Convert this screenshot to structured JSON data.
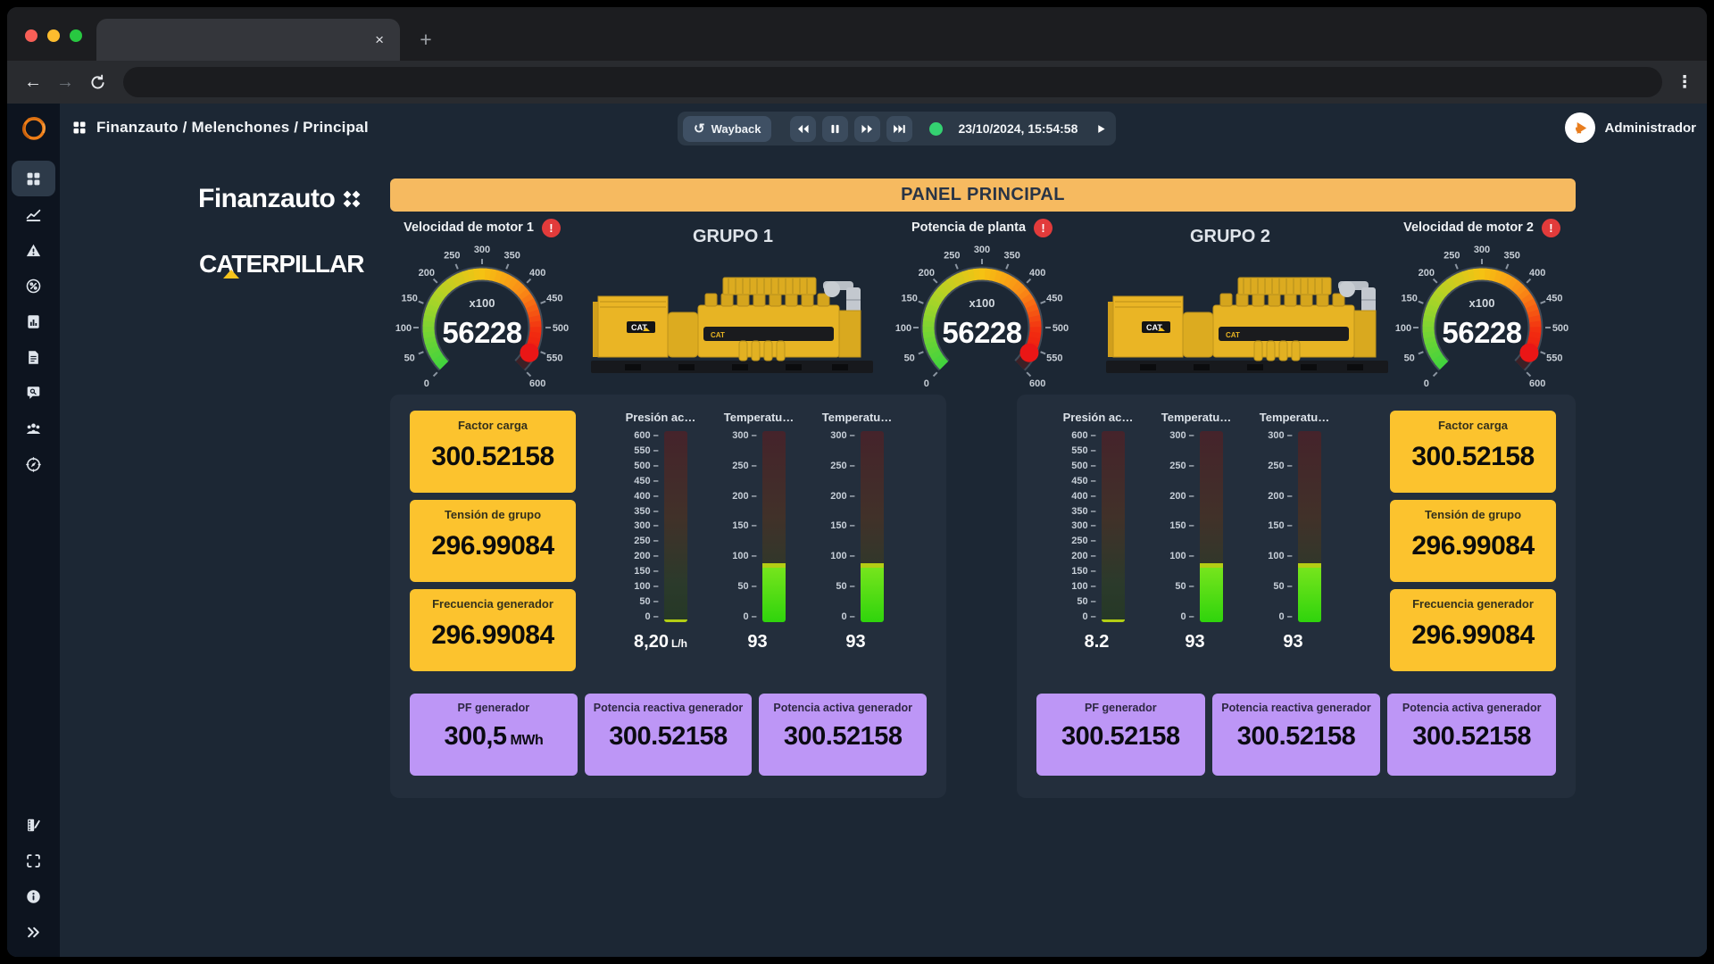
{
  "browser": {
    "tab_title": "",
    "new_tab": "+",
    "close": "×"
  },
  "icons_text": {
    "alarm": "!",
    "back": "←",
    "forward": "→",
    "menu": "⋮",
    "history": "↺"
  },
  "topbar": {
    "breadcrumb": "Finanzauto / Melenchones / Principal",
    "wayback": "Wayback",
    "timestamp": "23/10/2024, 15:54:58",
    "user": "Administrador"
  },
  "brand": {
    "finanzauto": "Finanzauto",
    "caterpillar": "CATERPILLAR"
  },
  "panel_title": "PANEL PRINCIPAL",
  "colors": {
    "header_orange": "#f6ba60",
    "card_yellow": "#fcc32e",
    "card_purple": "#bd96f6",
    "alarm_red": "#e23b3b",
    "record_green": "#34d171"
  },
  "sidebar_icons": [
    "dashboard",
    "trend-chart",
    "alarm-warning",
    "percent",
    "report-chart",
    "document",
    "chat-search",
    "users",
    "compass",
    "media-report",
    "fullscreen",
    "info",
    "collapse"
  ],
  "gauges": [
    {
      "label": "Velocidad de motor 1",
      "display": "56228",
      "multiplier": "x100",
      "value": 562.28,
      "min": 0,
      "max": 600,
      "tick_step": 50,
      "alarm": true
    },
    {
      "label": "Potencia de planta",
      "display": "56228",
      "multiplier": "x100",
      "value": 562.28,
      "min": 0,
      "max": 600,
      "tick_step": 50,
      "alarm": true
    },
    {
      "label": "Velocidad de motor 2",
      "display": "56228",
      "multiplier": "x100",
      "value": 562.28,
      "min": 0,
      "max": 600,
      "tick_step": 50,
      "alarm": true
    }
  ],
  "groups": [
    {
      "title": "GRUPO 1",
      "cards": [
        {
          "label": "Factor carga",
          "value": "300.52158"
        },
        {
          "label": "Tensión de grupo",
          "value": "296.99084"
        },
        {
          "label": "Frecuencia generador",
          "value": "296.99084"
        }
      ],
      "bars": [
        {
          "label": "Presión ac…",
          "min": 0,
          "max": 600,
          "tick_step": 50,
          "value": 8.2,
          "display": "8,20",
          "unit": "L/h"
        },
        {
          "label": "Temperatu…",
          "min": 0,
          "max": 300,
          "tick_step": 50,
          "value": 93,
          "display": "93",
          "unit": ""
        },
        {
          "label": "Temperatu…",
          "min": 0,
          "max": 300,
          "tick_step": 50,
          "value": 93,
          "display": "93",
          "unit": ""
        }
      ],
      "kpis": [
        {
          "label": "PF generador",
          "value": "300,5",
          "unit": "MWh"
        },
        {
          "label": "Potencia reactiva generador",
          "value": "300.52158",
          "unit": ""
        },
        {
          "label": "Potencia activa generador",
          "value": "300.52158",
          "unit": ""
        }
      ]
    },
    {
      "title": "GRUPO 2",
      "cards": [
        {
          "label": "Factor carga",
          "value": "300.52158"
        },
        {
          "label": "Tensión de grupo",
          "value": "296.99084"
        },
        {
          "label": "Frecuencia generador",
          "value": "296.99084"
        }
      ],
      "bars": [
        {
          "label": "Presión ac…",
          "min": 0,
          "max": 600,
          "tick_step": 50,
          "value": 8.2,
          "display": "8.2",
          "unit": ""
        },
        {
          "label": "Temperatu…",
          "min": 0,
          "max": 300,
          "tick_step": 50,
          "value": 93,
          "display": "93",
          "unit": ""
        },
        {
          "label": "Temperatu…",
          "min": 0,
          "max": 300,
          "tick_step": 50,
          "value": 93,
          "display": "93",
          "unit": ""
        }
      ],
      "kpis": [
        {
          "label": "PF generador",
          "value": "300.52158",
          "unit": ""
        },
        {
          "label": "Potencia reactiva generador",
          "value": "300.52158",
          "unit": ""
        },
        {
          "label": "Potencia activa generador",
          "value": "300.52158",
          "unit": ""
        }
      ]
    }
  ]
}
